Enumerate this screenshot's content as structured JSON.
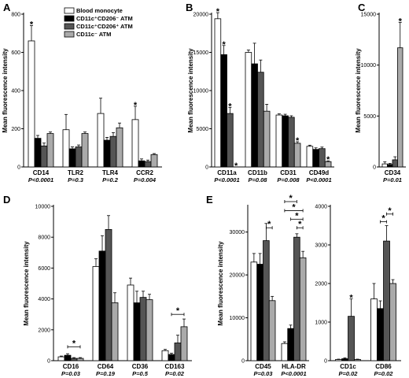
{
  "legend": {
    "items": [
      {
        "label": "Blood monocyte",
        "color": "#ffffff"
      },
      {
        "label": "CD11c⁺CD206⁻ ATM",
        "color": "#000000"
      },
      {
        "label": "CD11c⁺CD206⁺ ATM",
        "color": "#555555"
      },
      {
        "label": "CD11c⁻ ATM",
        "color": "#aaaaaa"
      }
    ]
  },
  "chart_data": [
    {
      "panel": "A",
      "type": "bar",
      "ylabel": "Mean fluorescence intensity",
      "ylim": [
        0,
        800
      ],
      "yticks": [
        0,
        200,
        400,
        600,
        800
      ],
      "categories": [
        "CD14",
        "TLR2",
        "TLR4",
        "CCR2"
      ],
      "pvalues": [
        "P<0.0001",
        "P=0.3",
        "P=0.2",
        "P=0.004"
      ],
      "series": [
        {
          "values": [
            660,
            195,
            280,
            248
          ],
          "errors": [
            80,
            80,
            80,
            70
          ]
        },
        {
          "values": [
            150,
            95,
            140,
            32
          ],
          "errors": [
            15,
            10,
            15,
            10
          ]
        },
        {
          "values": [
            110,
            105,
            160,
            28
          ],
          "errors": [
            15,
            10,
            20,
            8
          ]
        },
        {
          "values": [
            175,
            175,
            205,
            65
          ],
          "errors": [
            8,
            8,
            25,
            5
          ]
        }
      ],
      "stars": [
        {
          "cat": 0,
          "bar": 0
        },
        {
          "cat": 3,
          "bar": 0
        }
      ]
    },
    {
      "panel": "B",
      "type": "bar",
      "ylabel": "Mean fluorescence intensity",
      "ylim": [
        0,
        20000
      ],
      "yticks": [
        0,
        5000,
        10000,
        15000,
        20000
      ],
      "categories": [
        "CD11a",
        "CD11b",
        "CD31",
        "CD49d"
      ],
      "pvalues": [
        "P<0.0001",
        "P=0.08",
        "P=0.008",
        "P<0.0001"
      ],
      "series": [
        {
          "values": [
            19400,
            15000,
            6800,
            2700
          ],
          "errors": [
            800,
            300,
            150,
            150
          ]
        },
        {
          "values": [
            14700,
            13500,
            6700,
            2300
          ],
          "errors": [
            1200,
            2700,
            200,
            200
          ]
        },
        {
          "values": [
            7000,
            12400,
            6500,
            2400
          ],
          "errors": [
            800,
            1600,
            200,
            200
          ]
        },
        {
          "values": [
            0,
            7300,
            3100,
            700
          ],
          "errors": [
            0,
            900,
            200,
            100
          ]
        }
      ],
      "stars": [
        {
          "cat": 0,
          "bar": 0
        },
        {
          "cat": 0,
          "bar": 1
        },
        {
          "cat": 0,
          "bar": 2
        },
        {
          "cat": 0,
          "bar": 3
        },
        {
          "cat": 2,
          "bar": 3
        },
        {
          "cat": 3,
          "bar": 3
        }
      ]
    },
    {
      "panel": "C",
      "type": "bar",
      "ylabel": "Mean fluorescence intensity",
      "ylim": [
        0,
        15000
      ],
      "yticks": [
        0,
        5000,
        10000,
        15000
      ],
      "categories": [
        "CD34"
      ],
      "pvalues": [
        "P=0.01"
      ],
      "series": [
        {
          "values": [
            300
          ],
          "errors": [
            200
          ]
        },
        {
          "values": [
            250
          ],
          "errors": [
            100
          ]
        },
        {
          "values": [
            700
          ],
          "errors": [
            300
          ]
        },
        {
          "values": [
            11700
          ],
          "errors": [
            2500
          ]
        }
      ],
      "stars": [
        {
          "cat": 0,
          "bar": 3
        }
      ]
    },
    {
      "panel": "D",
      "type": "bar",
      "ylabel": "Mean fluorescence intensity",
      "ylim": [
        0,
        10000
      ],
      "yticks": [
        0,
        2000,
        4000,
        6000,
        8000,
        10000
      ],
      "categories": [
        "CD16",
        "CD64",
        "CD36",
        "CD163"
      ],
      "pvalues": [
        "P=0.03",
        "P=0.19",
        "P=0.5",
        "P=0.02"
      ],
      "series": [
        {
          "values": [
            250,
            6100,
            4900,
            650
          ],
          "errors": [
            50,
            500,
            450,
            80
          ]
        },
        {
          "values": [
            350,
            7100,
            3750,
            400
          ],
          "errors": [
            100,
            1000,
            750,
            80
          ]
        },
        {
          "values": [
            150,
            8500,
            4100,
            1150
          ],
          "errors": [
            50,
            900,
            400,
            500
          ]
        },
        {
          "values": [
            150,
            3750,
            3950,
            2200
          ],
          "errors": [
            50,
            650,
            350,
            500
          ]
        }
      ],
      "stars": [],
      "brackets": [
        {
          "cat": 0,
          "from": 1,
          "to": 3,
          "value": 900
        },
        {
          "cat": 3,
          "from": 1,
          "to": 3,
          "value": 3000
        }
      ]
    },
    {
      "panel": "E",
      "type": "bar",
      "ylabel": "Mean fluorescence intensity",
      "ylim": [
        0,
        36000
      ],
      "yticks": [
        0,
        10000,
        20000,
        30000
      ],
      "categories": [
        "CD45",
        "HLA-DR"
      ],
      "pvalues": [
        "P=0.03",
        "P<0.0001"
      ],
      "series": [
        {
          "values": [
            23000,
            4000
          ],
          "errors": [
            2000,
            400
          ]
        },
        {
          "values": [
            22500,
            7500
          ],
          "errors": [
            2500,
            800
          ]
        },
        {
          "values": [
            28000,
            28800
          ],
          "errors": [
            4000,
            800
          ]
        },
        {
          "values": [
            14000,
            24000
          ],
          "errors": [
            1000,
            1500
          ]
        }
      ],
      "stars": [],
      "brackets": [
        {
          "cat": 0,
          "from": 2,
          "to": 3,
          "value": 31000
        },
        {
          "cat": 1,
          "from": 2,
          "to": 3,
          "value": 31000
        },
        {
          "cat": 1,
          "from": 1,
          "to": 3,
          "value": 33000
        },
        {
          "cat": 1,
          "from": 0,
          "to": 3,
          "value": 35000
        },
        {
          "cat": 1,
          "from": 0,
          "to": 2,
          "value": 37500
        }
      ]
    },
    {
      "panel": "E2",
      "type": "bar",
      "ylabel": "",
      "ylim": [
        0,
        4000
      ],
      "yticks": [
        0,
        1000,
        2000,
        3000,
        4000
      ],
      "categories": [
        "CD1c",
        "CD86"
      ],
      "pvalues": [
        "P=0.02",
        "P=0.02"
      ],
      "series": [
        {
          "values": [
            30,
            1600
          ],
          "errors": [
            10,
            400
          ]
        },
        {
          "values": [
            50,
            1350
          ],
          "errors": [
            20,
            200
          ]
        },
        {
          "values": [
            1150,
            3100
          ],
          "errors": [
            450,
            400
          ]
        },
        {
          "values": [
            30,
            2000
          ],
          "errors": [
            10,
            100
          ]
        }
      ],
      "stars": [
        {
          "cat": 0,
          "bar": 2
        }
      ],
      "brackets": [
        {
          "cat": 1,
          "from": 1,
          "to": 2,
          "value": 3600
        },
        {
          "cat": 1,
          "from": 2,
          "to": 3,
          "value": 3800
        }
      ]
    }
  ]
}
